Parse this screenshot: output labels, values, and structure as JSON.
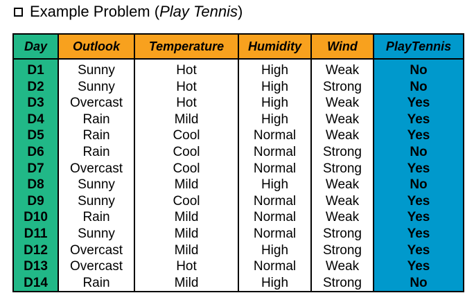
{
  "title": {
    "parts": [
      "Example Problem (",
      "Play Tennis",
      ")"
    ]
  },
  "table": {
    "headers": [
      "Day",
      "Outlook",
      "Temperature",
      "Humidity",
      "Wind",
      "PlayTennis"
    ],
    "rows": [
      [
        "D1",
        "Sunny",
        "Hot",
        "High",
        "Weak",
        "No"
      ],
      [
        "D2",
        "Sunny",
        "Hot",
        "High",
        "Strong",
        "No"
      ],
      [
        "D3",
        "Overcast",
        "Hot",
        "High",
        "Weak",
        "Yes"
      ],
      [
        "D4",
        "Rain",
        "Mild",
        "High",
        "Weak",
        "Yes"
      ],
      [
        "D5",
        "Rain",
        "Cool",
        "Normal",
        "Weak",
        "Yes"
      ],
      [
        "D6",
        "Rain",
        "Cool",
        "Normal",
        "Strong",
        "No"
      ],
      [
        "D7",
        "Overcast",
        "Cool",
        "Normal",
        "Strong",
        "Yes"
      ],
      [
        "D8",
        "Sunny",
        "Mild",
        "High",
        "Weak",
        "No"
      ],
      [
        "D9",
        "Sunny",
        "Cool",
        "Normal",
        "Weak",
        "Yes"
      ],
      [
        "D10",
        "Rain",
        "Mild",
        "Normal",
        "Weak",
        "Yes"
      ],
      [
        "D11",
        "Sunny",
        "Mild",
        "Normal",
        "Strong",
        "Yes"
      ],
      [
        "D12",
        "Overcast",
        "Mild",
        "High",
        "Strong",
        "Yes"
      ],
      [
        "D13",
        "Overcast",
        "Hot",
        "Normal",
        "Weak",
        "Yes"
      ],
      [
        "D14",
        "Rain",
        "Mild",
        "High",
        "Strong",
        "No"
      ]
    ]
  }
}
